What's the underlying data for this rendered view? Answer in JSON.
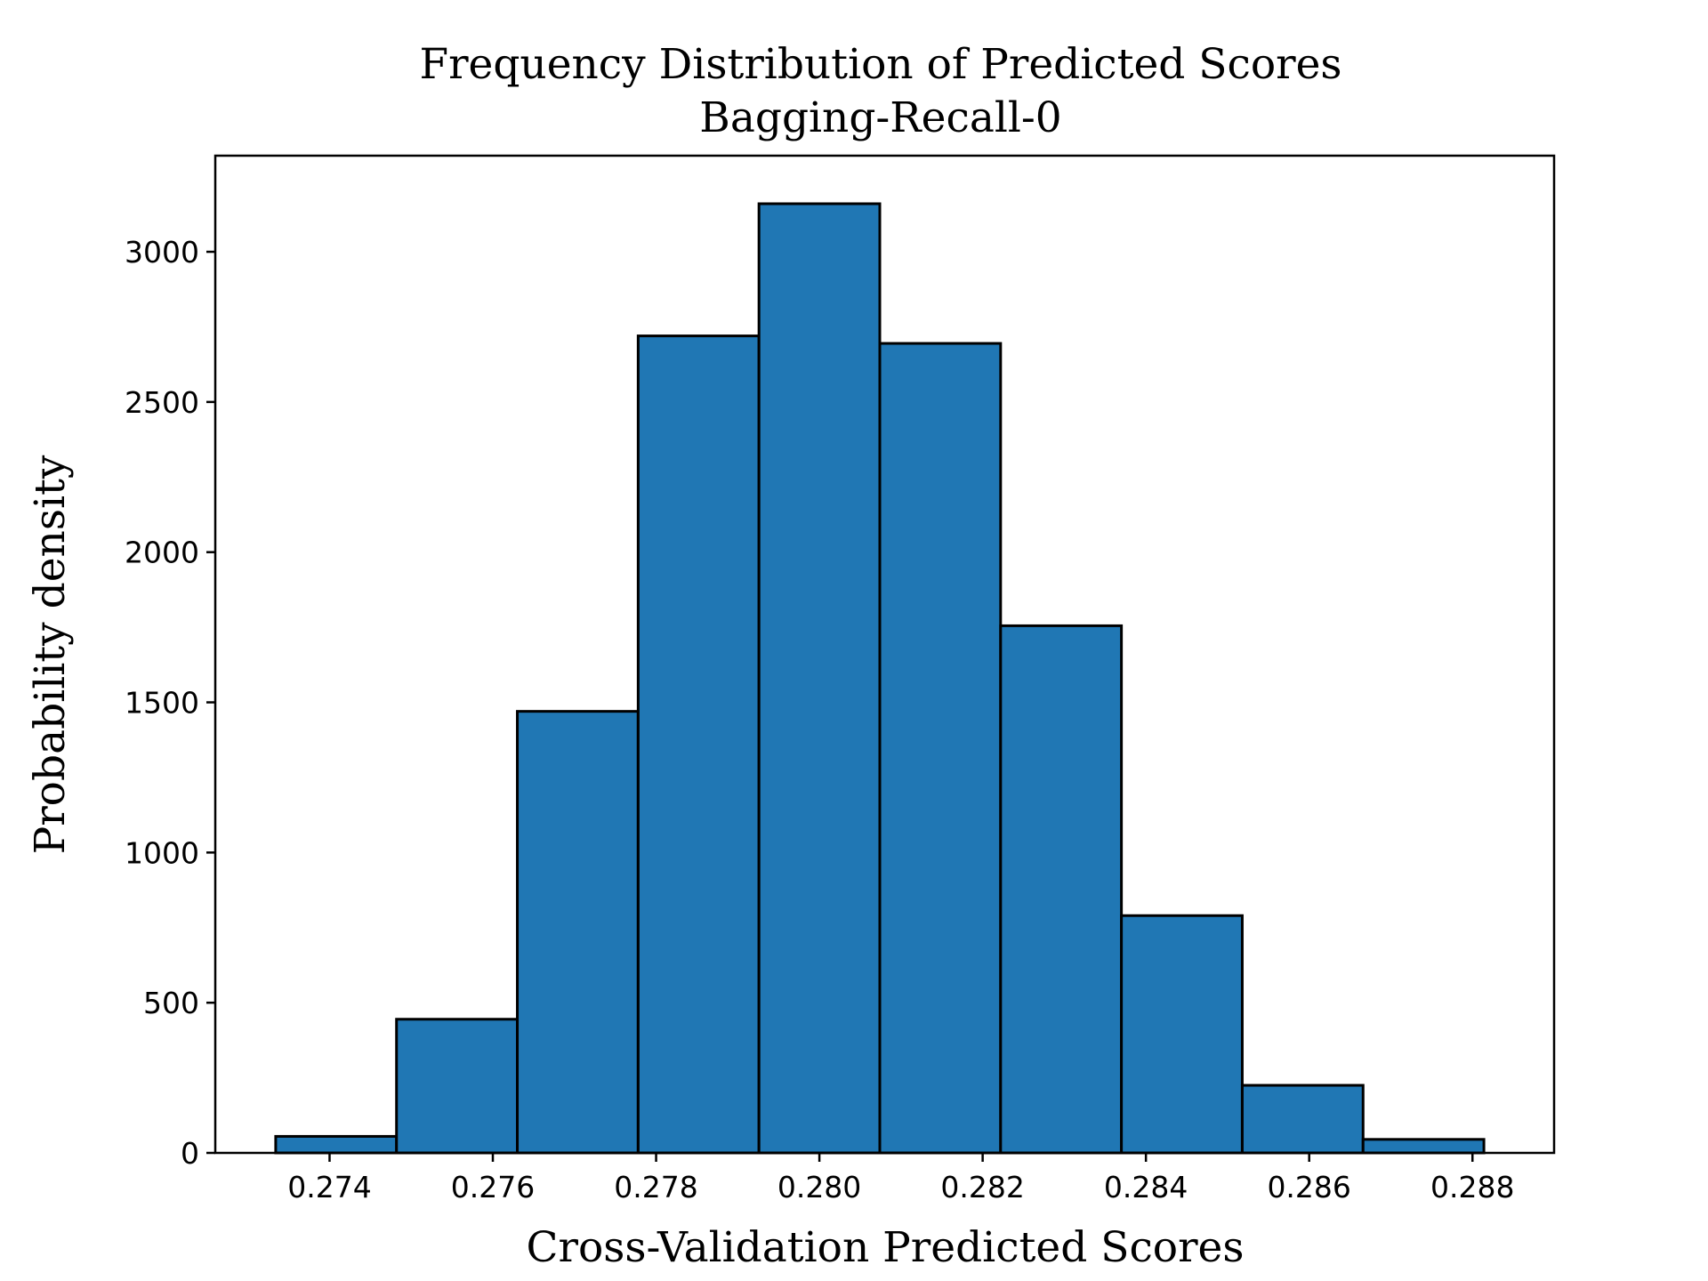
{
  "chart_data": {
    "type": "bar",
    "title": "Frequency Distribution of Predicted Scores",
    "subtitle": "Bagging-Recall-0",
    "xlabel": "Cross-Validation Predicted Scores",
    "ylabel": "Probability density",
    "bar_color": "#2077b4",
    "edge_color": "#000000",
    "xlim": [
      0.2726,
      0.289
    ],
    "ylim": [
      0,
      3320
    ],
    "bin_edges": [
      0.27334,
      0.27482,
      0.2763,
      0.27778,
      0.27926,
      0.28074,
      0.28222,
      0.2837,
      0.28518,
      0.28666,
      0.28814
    ],
    "values": [
      55,
      445,
      1470,
      2720,
      3160,
      2695,
      1755,
      790,
      225,
      45
    ],
    "xticks": [
      0.274,
      0.276,
      0.278,
      0.28,
      0.282,
      0.284,
      0.286,
      0.288
    ],
    "xtick_labels": [
      "0.274",
      "0.276",
      "0.278",
      "0.280",
      "0.282",
      "0.284",
      "0.286",
      "0.288"
    ],
    "yticks": [
      0,
      500,
      1000,
      1500,
      2000,
      2500,
      3000
    ],
    "ytick_labels": [
      "0",
      "500",
      "1000",
      "1500",
      "2000",
      "2500",
      "3000"
    ],
    "grid": false,
    "legend": "none"
  }
}
